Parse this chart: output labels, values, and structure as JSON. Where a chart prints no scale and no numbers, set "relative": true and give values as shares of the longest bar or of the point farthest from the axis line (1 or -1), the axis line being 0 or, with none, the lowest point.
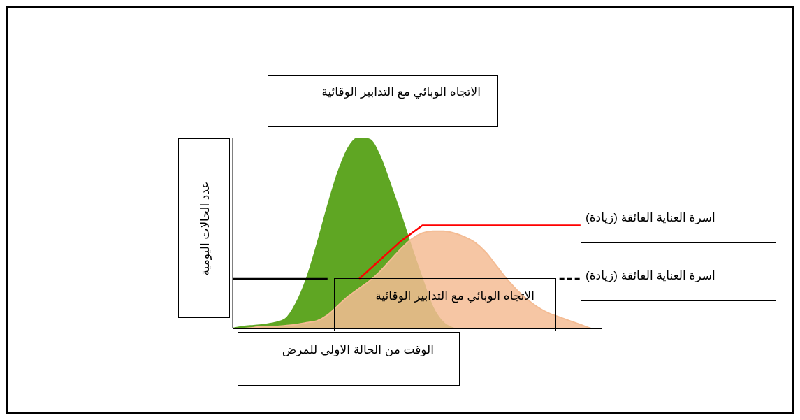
{
  "chart_data": {
    "type": "area",
    "title": "الاتجاه الوبائي مع التدابير الوقائية",
    "xlabel": "الوقت من الحالة الاولى للمرض",
    "ylabel": "عدد الحالات اليومية",
    "relative": true,
    "marker": "none",
    "categories": [
      null,
      null,
      null,
      null,
      null,
      null,
      null,
      null,
      null,
      null,
      null,
      null,
      null,
      null,
      null,
      null,
      null,
      null,
      null,
      null,
      null,
      null,
      null,
      null,
      null,
      null,
      null,
      null,
      null,
      null,
      null,
      null,
      null,
      null,
      null,
      null
    ],
    "series": [
      {
        "color": "#5fa623",
        "values": [
          0,
          0.01,
          0.015,
          0.02,
          0.03,
          0.05,
          0.13,
          0.26,
          0.44,
          0.64,
          0.82,
          0.95,
          1,
          0.99,
          0.9,
          0.75,
          0.59,
          0.42,
          0.26,
          0.11,
          0.03,
          0,
          null,
          null,
          null,
          null,
          null,
          null,
          null,
          null,
          null,
          null,
          null,
          null,
          null,
          null
        ]
      },
      {
        "name": "الاتجاه الوبائي مع التدابير الوقائية",
        "color": "#f4bc94",
        "values": [
          0,
          0,
          0.005,
          0.01,
          0.01,
          0.015,
          0.02,
          0.03,
          0.04,
          0.07,
          0.12,
          0.17,
          0.21,
          0.25,
          0.3,
          0.36,
          0.42,
          0.47,
          0.5,
          0.51,
          0.51,
          0.5,
          0.48,
          0.45,
          0.4,
          0.33,
          0.26,
          0.2,
          0.15,
          0.11,
          0.08,
          0.06,
          0.04,
          0.02,
          0,
          null
        ]
      },
      {
        "type": "line",
        "name": "اسرة العناية الفائقة (زيادة)",
        "color": "#ff0000",
        "line_style": "solid",
        "values": [
          null,
          null,
          null,
          null,
          null,
          null,
          null,
          null,
          null,
          null,
          null,
          null,
          0.26,
          0.31,
          0.36,
          0.41,
          0.46,
          0.5,
          0.54,
          0.54,
          0.54,
          0.54,
          0.54,
          0.54,
          0.54,
          0.54,
          0.54,
          0.54,
          0.54,
          0.54,
          0.54,
          0.54,
          0.54,
          0.54,
          null,
          null
        ]
      },
      {
        "type": "line",
        "color": "#000000",
        "line_style": "solid",
        "values": [
          0.26,
          0.26,
          0.26,
          0.26,
          0.26,
          0.26,
          0.26,
          0.26,
          0.26,
          0.26,
          null,
          null,
          null,
          null,
          null,
          null,
          null,
          null,
          null,
          null,
          null,
          null,
          null,
          null,
          null,
          null,
          null,
          null,
          null,
          null,
          null,
          null,
          null,
          null,
          null,
          null
        ]
      },
      {
        "type": "line",
        "name": "اسرة العناية الفائقة (زيادة)",
        "color": "#000000",
        "line_style": "dashed",
        "values": [
          null,
          null,
          null,
          null,
          null,
          null,
          null,
          null,
          null,
          null,
          null,
          null,
          null,
          null,
          null,
          null,
          null,
          null,
          null,
          null,
          null,
          null,
          null,
          null,
          null,
          null,
          null,
          null,
          null,
          null,
          null,
          0.26,
          0.26,
          0.26,
          null,
          null
        ]
      }
    ]
  }
}
